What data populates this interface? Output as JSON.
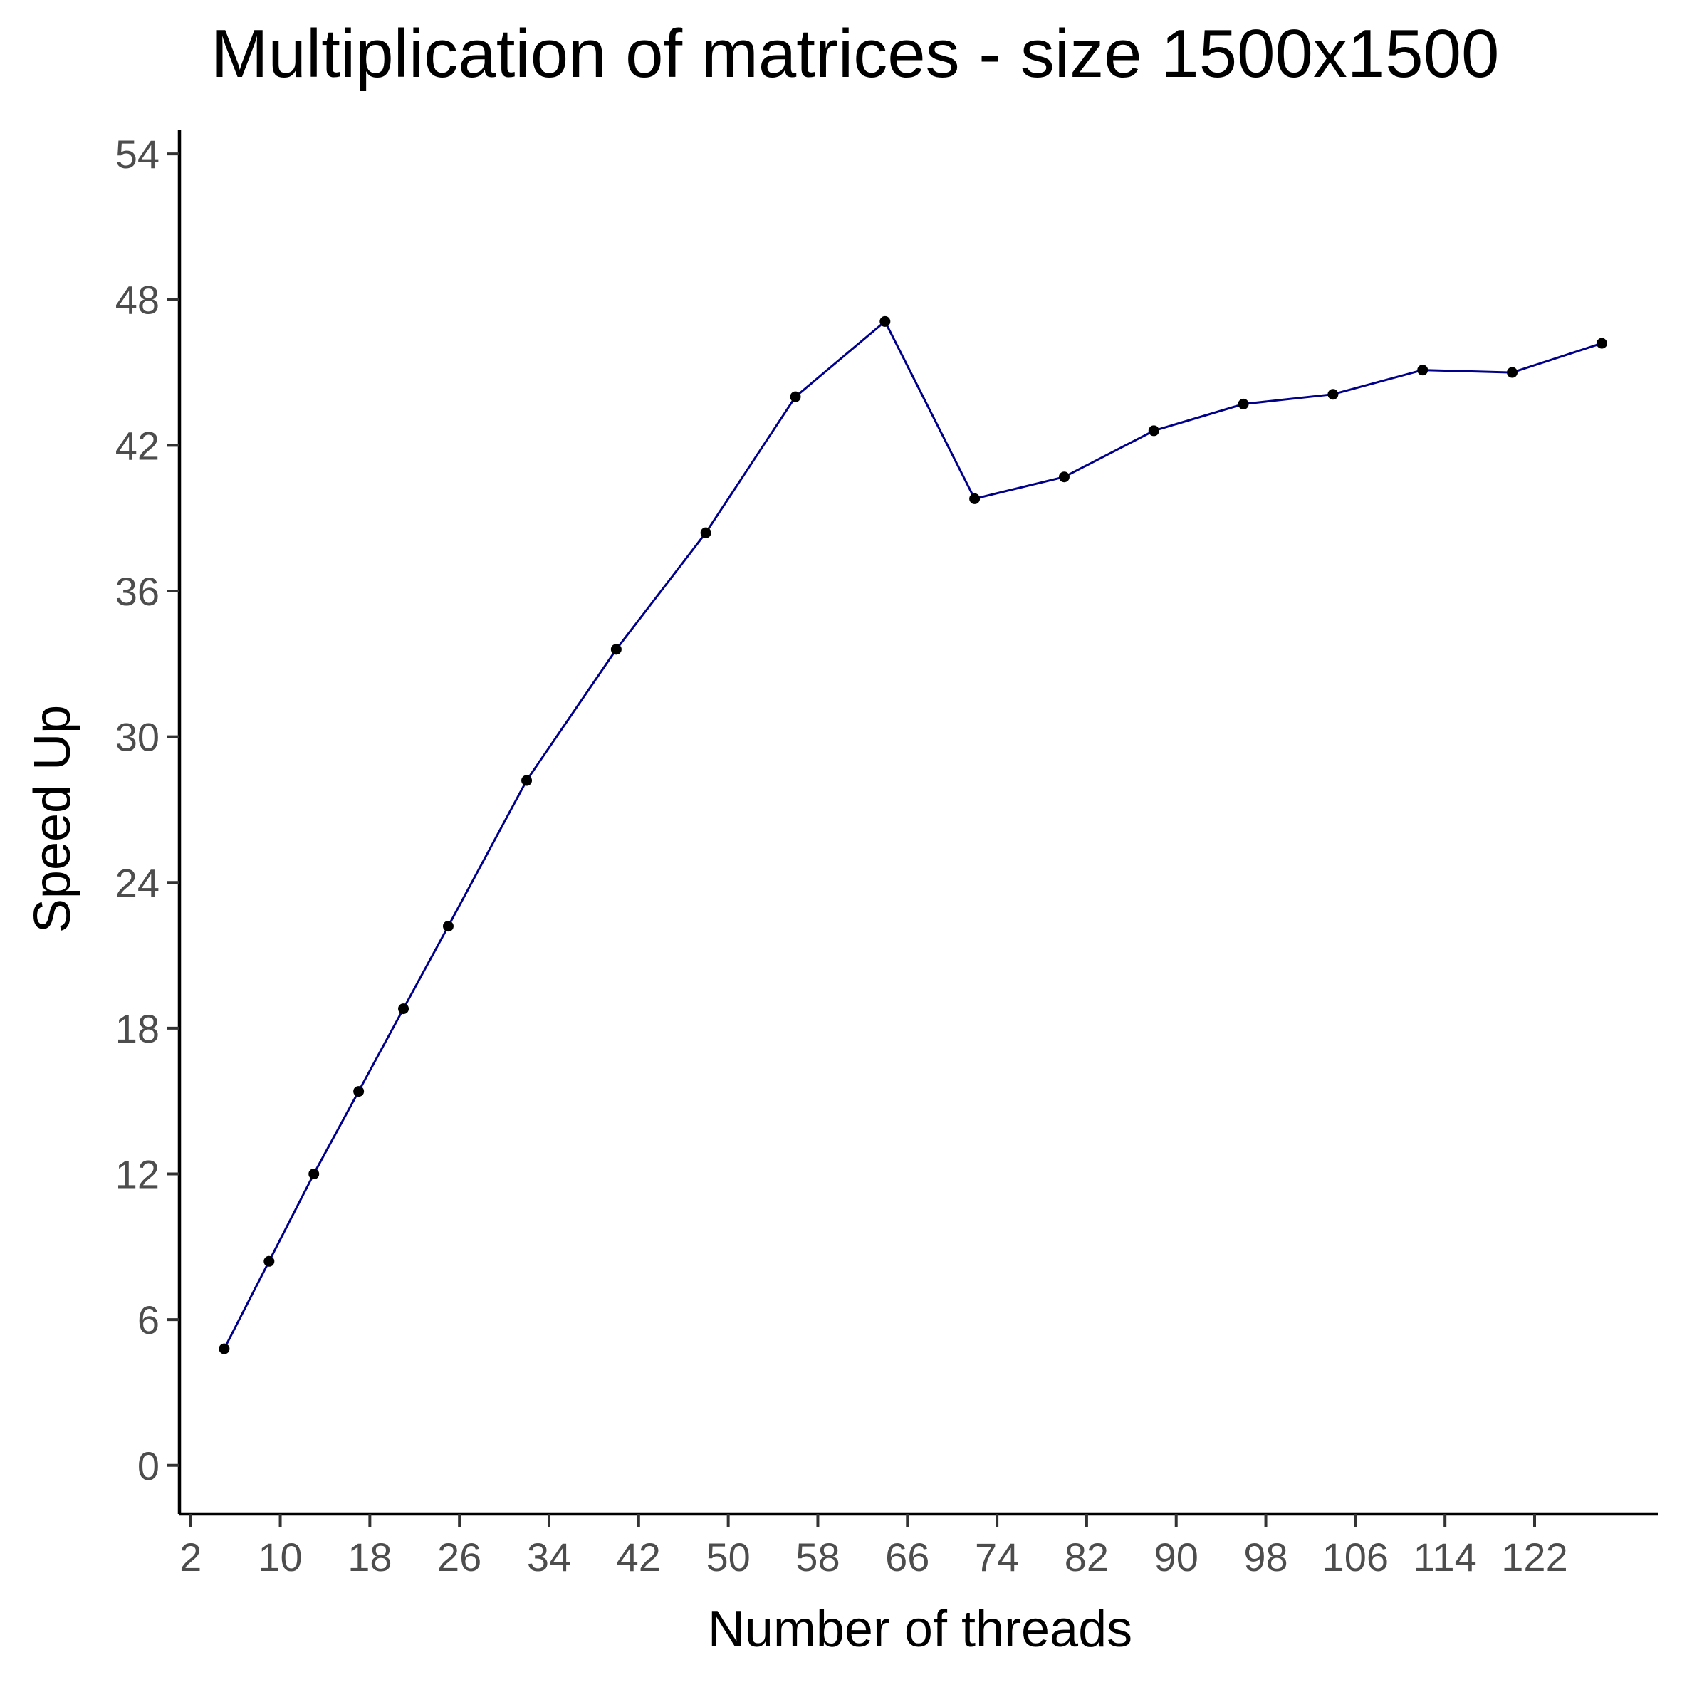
{
  "chart_data": {
    "type": "line",
    "title": "Multiplication of matrices - size 1500x1500",
    "xlabel": "Number of threads",
    "ylabel": "Speed Up",
    "xlim": [
      1,
      133
    ],
    "ylim": [
      -2,
      55
    ],
    "x_ticks": [
      2,
      10,
      18,
      26,
      34,
      42,
      50,
      58,
      66,
      74,
      82,
      90,
      98,
      106,
      114,
      122
    ],
    "y_ticks": [
      0,
      6,
      12,
      18,
      24,
      30,
      36,
      42,
      48,
      54
    ],
    "x_tick_labels": [
      "2",
      "10",
      "18",
      "26",
      "34",
      "42",
      "50",
      "58",
      "66",
      "74",
      "82",
      "90",
      "98",
      "106",
      "114",
      "122"
    ],
    "y_tick_labels": [
      "0",
      "6",
      "12",
      "18",
      "24",
      "30",
      "36",
      "42",
      "48",
      "54"
    ],
    "grid": false,
    "legend": "none",
    "line_color": "#00008b",
    "point_color": "#000000",
    "series": [
      {
        "x": [
          5,
          9,
          13,
          17,
          21,
          25,
          32,
          40,
          48,
          56,
          64,
          72,
          80,
          88,
          96,
          104,
          112,
          120,
          128
        ],
        "values": [
          4.8,
          8.4,
          12.0,
          15.4,
          18.8,
          22.2,
          28.2,
          33.6,
          38.4,
          44.0,
          47.1,
          39.8,
          40.7,
          42.6,
          43.7,
          44.1,
          45.1,
          45.0,
          46.2
        ]
      }
    ]
  }
}
